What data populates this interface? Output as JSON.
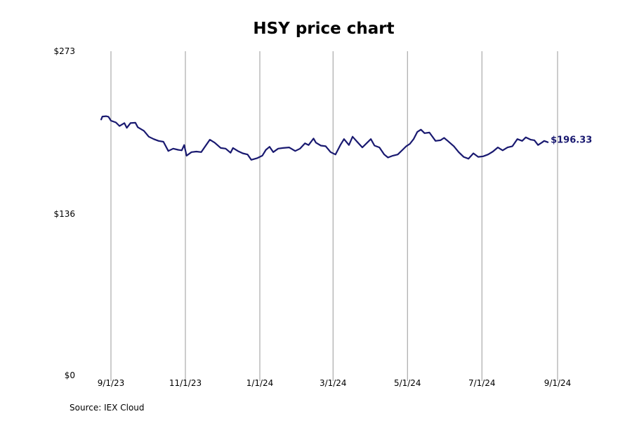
{
  "chart_data": {
    "type": "line",
    "title": "HSY price chart",
    "source": "Source: IEX Cloud",
    "line_color": "#191970",
    "grid_color": "#9a9a9a",
    "y_ticks": [
      {
        "value": 0,
        "label": "$0"
      },
      {
        "value": 136,
        "label": "$136"
      },
      {
        "value": 273,
        "label": "$273"
      }
    ],
    "ylim": [
      0,
      273
    ],
    "x_ticks": [
      "9/1/23",
      "11/1/23",
      "1/1/24",
      "3/1/24",
      "5/1/24",
      "7/1/24",
      "9/1/24"
    ],
    "xlim": [
      "2023-08-24",
      "2024-09-01"
    ],
    "last_value_label": "$196.33",
    "series": [
      {
        "values": [
          [
            "2023-08-24",
            215.5
          ],
          [
            "2023-08-25",
            218.0
          ],
          [
            "2023-08-28",
            218.3
          ],
          [
            "2023-08-30",
            217.8
          ],
          [
            "2023-09-01",
            214.5
          ],
          [
            "2023-09-05",
            213.0
          ],
          [
            "2023-09-08",
            210.0
          ],
          [
            "2023-09-12",
            212.5
          ],
          [
            "2023-09-14",
            208.5
          ],
          [
            "2023-09-17",
            212.5
          ],
          [
            "2023-09-21",
            212.8
          ],
          [
            "2023-09-23",
            209.0
          ],
          [
            "2023-09-28",
            206.0
          ],
          [
            "2023-10-02",
            201.0
          ],
          [
            "2023-10-06",
            199.0
          ],
          [
            "2023-10-10",
            197.5
          ],
          [
            "2023-10-14",
            196.8
          ],
          [
            "2023-10-18",
            189.0
          ],
          [
            "2023-10-22",
            191.0
          ],
          [
            "2023-10-26",
            190.0
          ],
          [
            "2023-10-29",
            189.5
          ],
          [
            "2023-10-31",
            194.0
          ],
          [
            "2023-11-02",
            185.0
          ],
          [
            "2023-11-06",
            188.0
          ],
          [
            "2023-11-10",
            188.5
          ],
          [
            "2023-11-14",
            188.0
          ],
          [
            "2023-11-18",
            194.0
          ],
          [
            "2023-11-21",
            198.5
          ],
          [
            "2023-11-25",
            196.0
          ],
          [
            "2023-11-30",
            191.5
          ],
          [
            "2023-12-04",
            191.0
          ],
          [
            "2023-12-08",
            187.5
          ],
          [
            "2023-12-10",
            191.5
          ],
          [
            "2023-12-14",
            189.0
          ],
          [
            "2023-12-18",
            187.0
          ],
          [
            "2023-12-22",
            186.0
          ],
          [
            "2023-12-25",
            181.5
          ],
          [
            "2023-12-30",
            183.0
          ],
          [
            "2024-01-03",
            185.0
          ],
          [
            "2024-01-06",
            190.0
          ],
          [
            "2024-01-09",
            192.5
          ],
          [
            "2024-01-12",
            188.0
          ],
          [
            "2024-01-16",
            191.0
          ],
          [
            "2024-01-20",
            191.5
          ],
          [
            "2024-01-25",
            192.0
          ],
          [
            "2024-01-30",
            189.0
          ],
          [
            "2024-02-03",
            191.0
          ],
          [
            "2024-02-07",
            195.5
          ],
          [
            "2024-02-10",
            194.0
          ],
          [
            "2024-02-14",
            199.5
          ],
          [
            "2024-02-16",
            196.0
          ],
          [
            "2024-02-20",
            193.5
          ],
          [
            "2024-02-24",
            193.0
          ],
          [
            "2024-02-28",
            188.0
          ],
          [
            "2024-03-03",
            186.0
          ],
          [
            "2024-03-07",
            194.0
          ],
          [
            "2024-03-10",
            199.0
          ],
          [
            "2024-03-14",
            194.0
          ],
          [
            "2024-03-17",
            201.0
          ],
          [
            "2024-03-21",
            196.5
          ],
          [
            "2024-03-25",
            192.0
          ],
          [
            "2024-03-29",
            196.0
          ],
          [
            "2024-04-01",
            199.0
          ],
          [
            "2024-04-04",
            193.5
          ],
          [
            "2024-04-08",
            192.0
          ],
          [
            "2024-04-12",
            186.0
          ],
          [
            "2024-04-15",
            183.5
          ],
          [
            "2024-04-19",
            185.0
          ],
          [
            "2024-04-23",
            186.0
          ],
          [
            "2024-04-27",
            190.0
          ],
          [
            "2024-04-30",
            193.0
          ],
          [
            "2024-05-03",
            195.0
          ],
          [
            "2024-05-06",
            199.0
          ],
          [
            "2024-05-09",
            205.0
          ],
          [
            "2024-05-12",
            207.0
          ],
          [
            "2024-05-15",
            204.0
          ],
          [
            "2024-05-19",
            204.5
          ],
          [
            "2024-05-24",
            197.5
          ],
          [
            "2024-05-28",
            198.0
          ],
          [
            "2024-05-31",
            200.0
          ],
          [
            "2024-06-03",
            197.5
          ],
          [
            "2024-06-08",
            193.0
          ],
          [
            "2024-06-12",
            188.0
          ],
          [
            "2024-06-16",
            184.0
          ],
          [
            "2024-06-20",
            182.5
          ],
          [
            "2024-06-24",
            187.0
          ],
          [
            "2024-06-28",
            184.0
          ],
          [
            "2024-07-02",
            184.5
          ],
          [
            "2024-07-06",
            186.0
          ],
          [
            "2024-07-10",
            188.5
          ],
          [
            "2024-07-14",
            192.0
          ],
          [
            "2024-07-18",
            189.5
          ],
          [
            "2024-07-22",
            192.0
          ],
          [
            "2024-07-26",
            193.0
          ],
          [
            "2024-07-30",
            199.0
          ],
          [
            "2024-08-03",
            197.5
          ],
          [
            "2024-08-06",
            200.5
          ],
          [
            "2024-08-10",
            198.5
          ],
          [
            "2024-08-13",
            198.0
          ],
          [
            "2024-08-16",
            194.0
          ],
          [
            "2024-08-19",
            196.0
          ],
          [
            "2024-08-21",
            197.5
          ],
          [
            "2024-08-24",
            196.33
          ]
        ]
      }
    ]
  }
}
